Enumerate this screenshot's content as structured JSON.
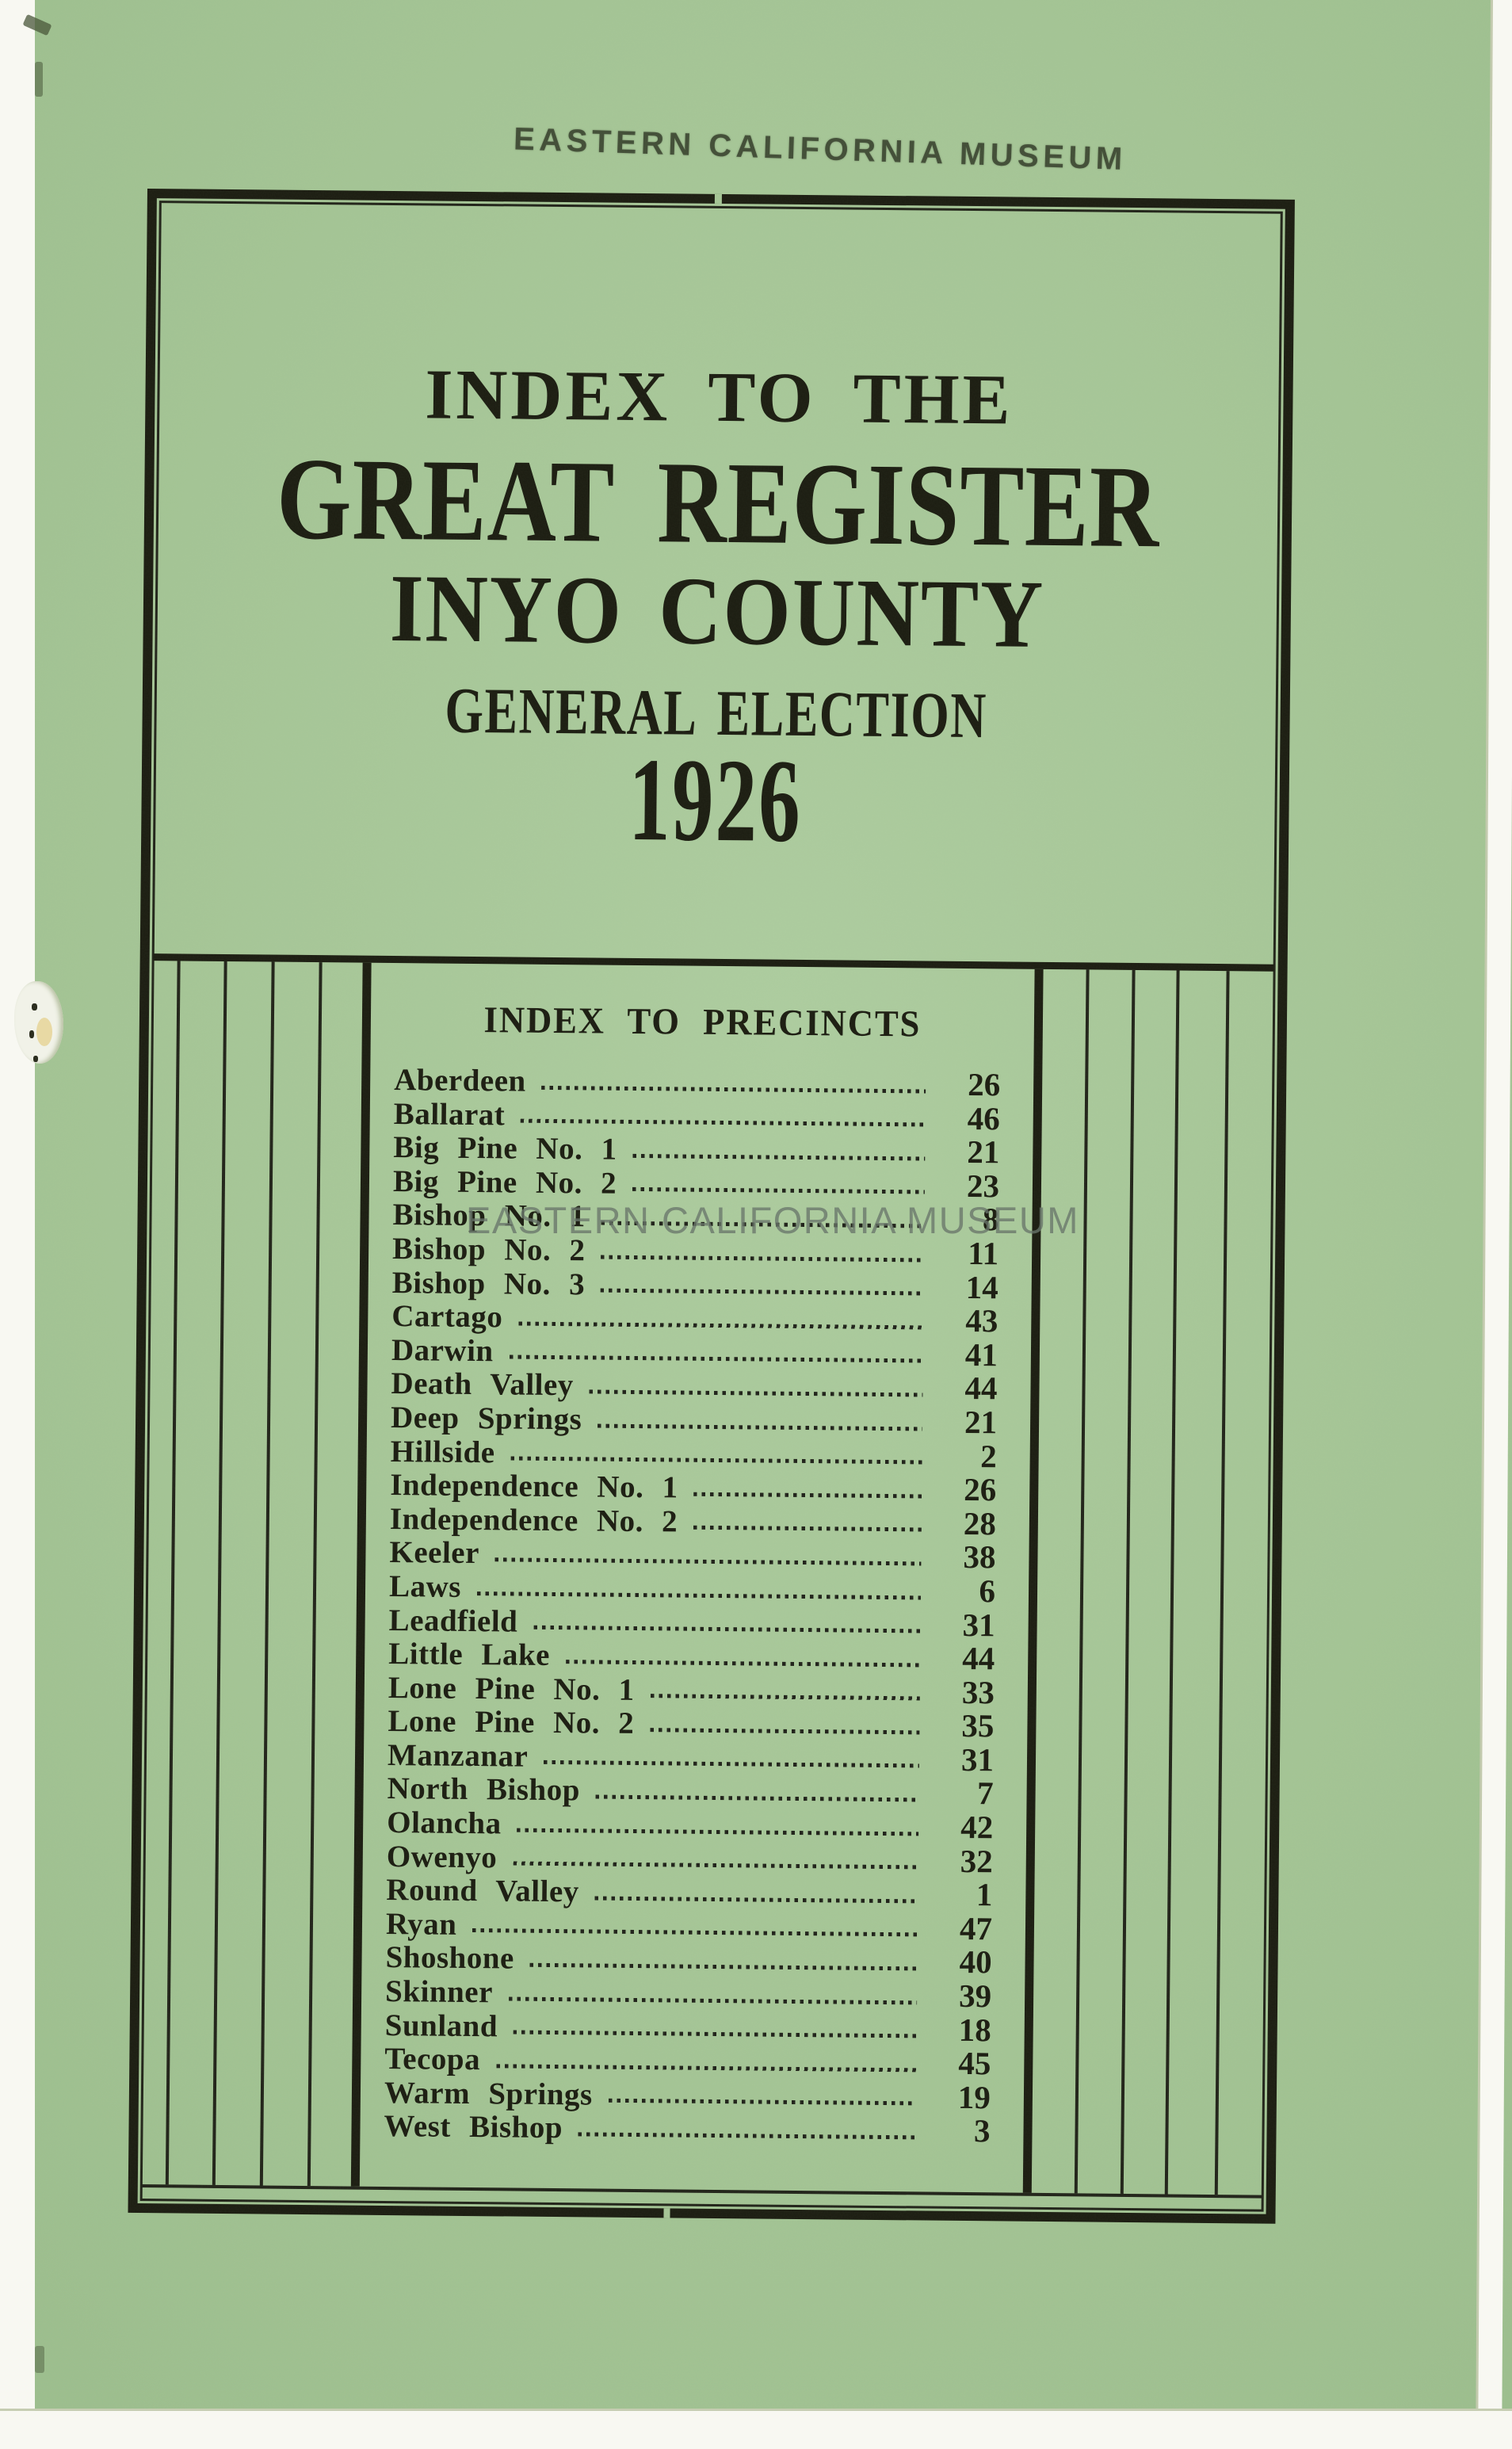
{
  "document": {
    "stamp_top": "EASTERN CALIFORNIA MUSEUM",
    "watermark": "EASTERN CALIFORNIA MUSEUM",
    "title": {
      "line1": "INDEX TO THE",
      "line2": "GREAT REGISTER",
      "line3": "INYO COUNTY",
      "line4": "GENERAL ELECTION",
      "year": "1926"
    },
    "precinct_index": {
      "heading": "INDEX TO PRECINCTS",
      "entries": [
        {
          "name": "Aberdeen",
          "page": "26"
        },
        {
          "name": "Ballarat",
          "page": "46"
        },
        {
          "name": "Big Pine No. 1",
          "page": "21"
        },
        {
          "name": "Big Pine No. 2",
          "page": "23"
        },
        {
          "name": "Bishop No. 1",
          "page": "8"
        },
        {
          "name": "Bishop No. 2",
          "page": "11"
        },
        {
          "name": "Bishop No. 3",
          "page": "14"
        },
        {
          "name": "Cartago",
          "page": "43"
        },
        {
          "name": "Darwin",
          "page": "41"
        },
        {
          "name": "Death Valley",
          "page": "44"
        },
        {
          "name": "Deep Springs",
          "page": "21"
        },
        {
          "name": "Hillside",
          "page": "2"
        },
        {
          "name": "Independence No. 1",
          "page": "26"
        },
        {
          "name": "Independence No. 2",
          "page": "28"
        },
        {
          "name": "Keeler",
          "page": "38"
        },
        {
          "name": "Laws",
          "page": "6"
        },
        {
          "name": "Leadfield",
          "page": "31"
        },
        {
          "name": "Little Lake",
          "page": "44"
        },
        {
          "name": "Lone Pine No. 1",
          "page": "33"
        },
        {
          "name": "Lone Pine No. 2",
          "page": "35"
        },
        {
          "name": "Manzanar",
          "page": "31"
        },
        {
          "name": "North Bishop",
          "page": "7"
        },
        {
          "name": "Olancha",
          "page": "42"
        },
        {
          "name": "Owenyo",
          "page": "32"
        },
        {
          "name": "Round Valley",
          "page": "1"
        },
        {
          "name": "Ryan",
          "page": "47"
        },
        {
          "name": "Shoshone",
          "page": "40"
        },
        {
          "name": "Skinner",
          "page": "39"
        },
        {
          "name": "Sunland",
          "page": "18"
        },
        {
          "name": "Tecopa",
          "page": "45"
        },
        {
          "name": "Warm Springs",
          "page": "19"
        },
        {
          "name": "West Bishop",
          "page": "3"
        }
      ]
    },
    "colors": {
      "paper": "#a6c697",
      "ink": "#1c1d12",
      "stamp_ink": "#38422e",
      "watermark_gray": "#687569",
      "scanner_bed": "#f8f8f2"
    }
  }
}
